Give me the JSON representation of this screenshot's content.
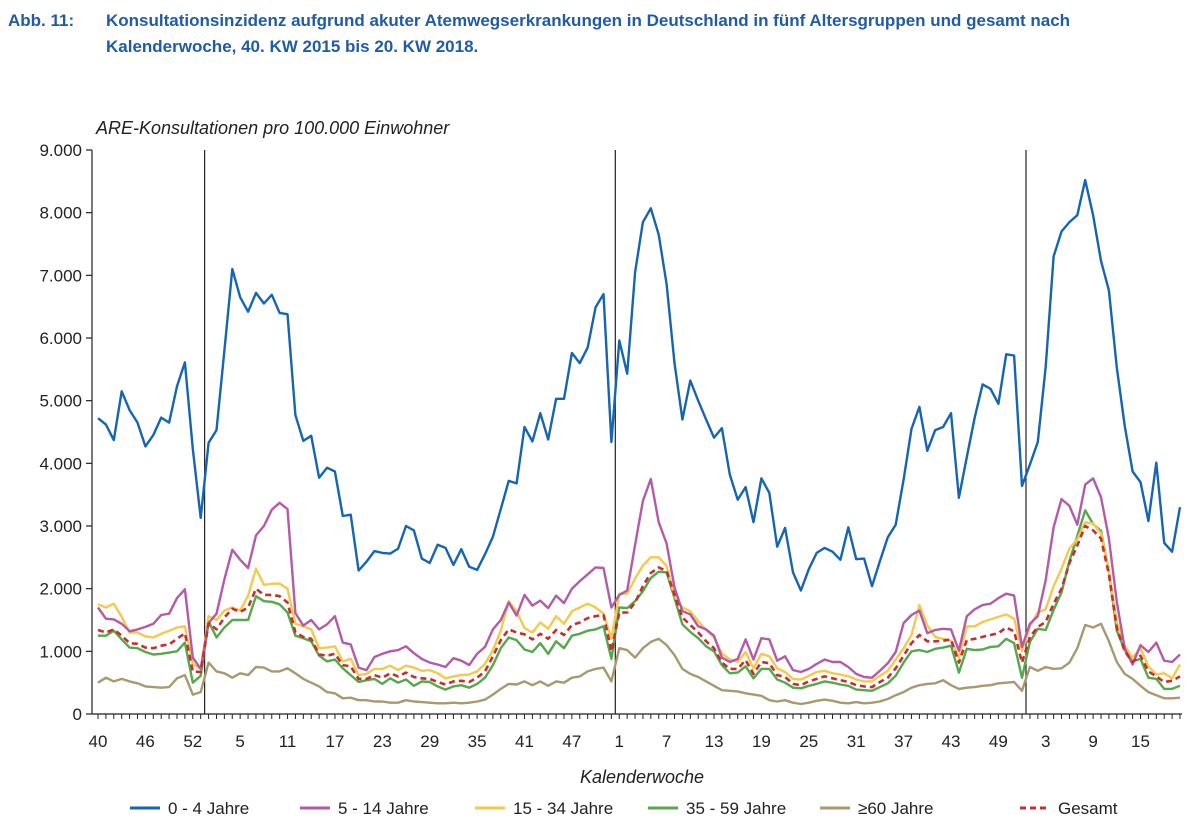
{
  "caption": {
    "label": "Abb. 11:",
    "text": "Konsultationsinzidenz aufgrund akuter Atemwegserkrankungen in Deutschland in fünf Altersgruppen und gesamt nach Kalenderwoche, 40. KW 2015 bis 20. KW 2018."
  },
  "chart_data": {
    "type": "line",
    "title": "",
    "ylabel": "ARE-Konsultationen pro 100.000 Einwohner",
    "xlabel": "Kalenderwoche",
    "ylim": [
      0,
      9000
    ],
    "yticks": [
      "0",
      "1.000",
      "2.000",
      "3.000",
      "4.000",
      "5.000",
      "6.000",
      "7.000",
      "8.000",
      "9.000"
    ],
    "x": [
      "40",
      "41",
      "42",
      "43",
      "44",
      "45",
      "46",
      "47",
      "48",
      "49",
      "50",
      "51",
      "52",
      "53",
      "1",
      "2",
      "3",
      "4",
      "5",
      "6",
      "7",
      "8",
      "9",
      "10",
      "11",
      "12",
      "13",
      "14",
      "15",
      "16",
      "17",
      "18",
      "19",
      "20",
      "21",
      "22",
      "23",
      "24",
      "25",
      "26",
      "27",
      "28",
      "29",
      "30",
      "31",
      "32",
      "33",
      "34",
      "35",
      "36",
      "37",
      "38",
      "39",
      "40",
      "41",
      "42",
      "43",
      "44",
      "45",
      "46",
      "47",
      "48",
      "49",
      "50",
      "51",
      "52",
      "1",
      "2",
      "3",
      "4",
      "5",
      "6",
      "7",
      "8",
      "9",
      "10",
      "11",
      "12",
      "13",
      "14",
      "15",
      "16",
      "17",
      "18",
      "19",
      "20",
      "21",
      "22",
      "23",
      "24",
      "25",
      "26",
      "27",
      "28",
      "29",
      "30",
      "31",
      "32",
      "33",
      "34",
      "35",
      "36",
      "37",
      "38",
      "39",
      "40",
      "41",
      "42",
      "43",
      "44",
      "45",
      "46",
      "47",
      "48",
      "49",
      "50",
      "51",
      "52",
      "1",
      "2",
      "3",
      "4",
      "5",
      "6",
      "7",
      "8",
      "9",
      "10",
      "11",
      "12",
      "13",
      "14",
      "15",
      "16",
      "17",
      "18",
      "19",
      "20"
    ],
    "xtick_labels": [
      "40",
      "46",
      "52",
      "5",
      "11",
      "17",
      "23",
      "29",
      "35",
      "41",
      "47",
      "1",
      "7",
      "13",
      "19",
      "25",
      "31",
      "37",
      "43",
      "49",
      "3",
      "9",
      "15"
    ],
    "season_breaks_after_week": [
      "53",
      "52",
      "52"
    ],
    "grid": false,
    "legend_position": "bottom",
    "series": [
      {
        "name": "0 - 4 Jahre",
        "color": "#1565b4",
        "dashed": false,
        "values": [
          4720,
          4620,
          4370,
          5150,
          4850,
          4650,
          4270,
          4450,
          4730,
          4650,
          5230,
          5610,
          4230,
          3130,
          4330,
          4530,
          5800,
          7100,
          6650,
          6420,
          6720,
          6550,
          6690,
          6400,
          6380,
          4770,
          4360,
          4440,
          3770,
          3930,
          3870,
          3160,
          3180,
          2290,
          2430,
          2600,
          2570,
          2560,
          2640,
          3000,
          2930,
          2480,
          2410,
          2700,
          2650,
          2380,
          2630,
          2350,
          2300,
          2550,
          2830,
          3270,
          3720,
          3680,
          4580,
          4350,
          4800,
          4380,
          5030,
          5030,
          5760,
          5600,
          5850,
          6490,
          6700,
          4340,
          5960,
          5430,
          7050,
          7850,
          8070,
          7650,
          6860,
          5600,
          4700,
          5320,
          5000,
          4700,
          4410,
          4560,
          3820,
          3420,
          3620,
          3060,
          3760,
          3530,
          2670,
          2970,
          2260,
          1970,
          2310,
          2570,
          2650,
          2590,
          2460,
          2980,
          2470,
          2480,
          2040,
          2440,
          2820,
          3020,
          3740,
          4550,
          4900,
          4200,
          4530,
          4580,
          4800,
          3450,
          4100,
          4730,
          5260,
          5190,
          4950,
          5740,
          5720,
          3640,
          3980,
          4340,
          5540,
          7300,
          7700,
          7850,
          7960,
          8520,
          7960,
          7230,
          6760,
          5530,
          4600,
          3870,
          3700,
          3080,
          4010,
          2730,
          2590,
          3300
        ]
      },
      {
        "name": "5 - 14 Jahre",
        "color": "#b45aa9",
        "dashed": false,
        "values": [
          1700,
          1520,
          1510,
          1440,
          1320,
          1350,
          1390,
          1440,
          1580,
          1600,
          1850,
          1990,
          900,
          720,
          1450,
          1600,
          2150,
          2620,
          2460,
          2330,
          2850,
          3000,
          3260,
          3370,
          3270,
          1610,
          1410,
          1500,
          1350,
          1430,
          1560,
          1140,
          1110,
          740,
          700,
          910,
          960,
          1000,
          1020,
          1080,
          970,
          880,
          820,
          790,
          750,
          890,
          850,
          780,
          960,
          1070,
          1350,
          1500,
          1780,
          1570,
          1900,
          1730,
          1810,
          1690,
          1890,
          1770,
          2000,
          2120,
          2230,
          2340,
          2330,
          1700,
          1900,
          1970,
          2700,
          3400,
          3750,
          3060,
          2720,
          2020,
          1640,
          1590,
          1400,
          1350,
          1250,
          900,
          830,
          880,
          1190,
          870,
          1210,
          1190,
          850,
          920,
          700,
          670,
          720,
          800,
          870,
          830,
          830,
          750,
          640,
          590,
          580,
          690,
          810,
          990,
          1450,
          1580,
          1650,
          1290,
          1340,
          1360,
          1350,
          1010,
          1560,
          1670,
          1740,
          1760,
          1850,
          1920,
          1890,
          1070,
          1440,
          1560,
          2140,
          2980,
          3430,
          3320,
          3020,
          3660,
          3760,
          3460,
          2800,
          1790,
          1050,
          790,
          1100,
          990,
          1140,
          850,
          830,
          950
        ]
      },
      {
        "name": "15 - 34 Jahre",
        "color": "#f5c94a",
        "dashed": false,
        "values": [
          1750,
          1700,
          1760,
          1550,
          1300,
          1300,
          1240,
          1220,
          1280,
          1330,
          1380,
          1400,
          800,
          720,
          1560,
          1500,
          1650,
          1700,
          1650,
          1890,
          2320,
          2060,
          2080,
          2080,
          2000,
          1440,
          1400,
          1350,
          1050,
          1060,
          1080,
          840,
          880,
          620,
          640,
          720,
          720,
          770,
          700,
          770,
          740,
          690,
          700,
          650,
          570,
          600,
          620,
          630,
          680,
          800,
          1020,
          1330,
          1800,
          1640,
          1370,
          1300,
          1460,
          1360,
          1560,
          1440,
          1640,
          1700,
          1760,
          1700,
          1600,
          1200,
          1920,
          1920,
          2160,
          2370,
          2500,
          2500,
          2360,
          1880,
          1700,
          1640,
          1480,
          1340,
          1220,
          970,
          870,
          830,
          990,
          730,
          960,
          920,
          730,
          670,
          560,
          550,
          610,
          670,
          690,
          650,
          630,
          600,
          550,
          520,
          520,
          610,
          690,
          870,
          1050,
          1260,
          1740,
          1410,
          1230,
          1200,
          1170,
          900,
          1400,
          1400,
          1470,
          1510,
          1550,
          1590,
          1520,
          1000,
          1400,
          1620,
          1670,
          2040,
          2320,
          2640,
          2790,
          3060,
          3040,
          2880,
          2300,
          1460,
          1090,
          900,
          1050,
          760,
          630,
          650,
          570,
          790
        ]
      },
      {
        "name": "35 - 59 Jahre",
        "color": "#56a84c",
        "dashed": false,
        "values": [
          1250,
          1250,
          1330,
          1190,
          1060,
          1050,
          990,
          950,
          960,
          980,
          1000,
          1140,
          500,
          610,
          1480,
          1220,
          1380,
          1500,
          1500,
          1500,
          1880,
          1800,
          1790,
          1750,
          1620,
          1250,
          1210,
          1160,
          930,
          840,
          870,
          730,
          620,
          510,
          540,
          560,
          480,
          570,
          500,
          550,
          450,
          520,
          510,
          440,
          390,
          440,
          460,
          420,
          480,
          580,
          780,
          1050,
          1220,
          1180,
          1030,
          990,
          1130,
          960,
          1160,
          1050,
          1250,
          1280,
          1330,
          1350,
          1400,
          880,
          1700,
          1690,
          1800,
          1960,
          2170,
          2270,
          2260,
          1850,
          1430,
          1310,
          1210,
          1080,
          1000,
          780,
          650,
          660,
          760,
          570,
          720,
          720,
          550,
          500,
          420,
          410,
          450,
          480,
          520,
          500,
          470,
          450,
          390,
          380,
          370,
          430,
          490,
          610,
          820,
          1000,
          1020,
          990,
          1040,
          1060,
          1090,
          660,
          1040,
          1020,
          1030,
          1070,
          1080,
          1200,
          1130,
          580,
          1150,
          1360,
          1340,
          1660,
          1940,
          2440,
          2840,
          3250,
          3030,
          2920,
          2280,
          1330,
          1020,
          840,
          880,
          580,
          560,
          400,
          400,
          450
        ]
      },
      {
        "name": "≥60 Jahre",
        "color": "#a89a6e",
        "dashed": false,
        "values": [
          500,
          580,
          520,
          560,
          520,
          490,
          440,
          430,
          420,
          430,
          570,
          620,
          310,
          350,
          820,
          680,
          650,
          580,
          650,
          620,
          750,
          740,
          680,
          680,
          730,
          650,
          560,
          500,
          440,
          350,
          330,
          250,
          260,
          220,
          220,
          200,
          200,
          180,
          180,
          220,
          200,
          190,
          180,
          170,
          170,
          180,
          170,
          180,
          200,
          230,
          310,
          400,
          480,
          470,
          520,
          460,
          520,
          450,
          520,
          500,
          580,
          600,
          680,
          720,
          740,
          520,
          1050,
          1020,
          900,
          1050,
          1150,
          1200,
          1100,
          940,
          720,
          640,
          590,
          520,
          450,
          380,
          370,
          360,
          330,
          310,
          290,
          220,
          200,
          220,
          180,
          160,
          180,
          210,
          230,
          210,
          180,
          170,
          190,
          170,
          180,
          200,
          240,
          300,
          350,
          420,
          460,
          480,
          490,
          540,
          460,
          400,
          420,
          430,
          450,
          460,
          490,
          500,
          510,
          370,
          750,
          690,
          750,
          720,
          730,
          820,
          1050,
          1420,
          1380,
          1440,
          1160,
          830,
          640,
          560,
          450,
          350,
          300,
          250,
          250,
          260
        ]
      },
      {
        "name": "Gesamt",
        "color": "#c62f2f",
        "dashed": true,
        "values": [
          1340,
          1300,
          1350,
          1250,
          1130,
          1120,
          1060,
          1050,
          1090,
          1110,
          1200,
          1290,
          680,
          670,
          1450,
          1350,
          1540,
          1680,
          1630,
          1700,
          2000,
          1900,
          1900,
          1880,
          1780,
          1300,
          1230,
          1200,
          950,
          930,
          960,
          780,
          760,
          560,
          560,
          620,
          580,
          650,
          600,
          660,
          590,
          570,
          560,
          510,
          470,
          520,
          530,
          510,
          580,
          680,
          920,
          1180,
          1350,
          1300,
          1270,
          1190,
          1280,
          1200,
          1340,
          1260,
          1420,
          1460,
          1530,
          1560,
          1580,
          1000,
          1620,
          1620,
          1780,
          2040,
          2250,
          2340,
          2280,
          1900,
          1540,
          1420,
          1300,
          1160,
          1050,
          820,
          720,
          720,
          860,
          640,
          830,
          810,
          620,
          590,
          480,
          460,
          520,
          560,
          600,
          570,
          540,
          510,
          460,
          440,
          430,
          510,
          580,
          730,
          930,
          1130,
          1260,
          1160,
          1160,
          1170,
          1190,
          820,
          1180,
          1200,
          1230,
          1260,
          1290,
          1380,
          1320,
          820,
          1230,
          1390,
          1470,
          1760,
          2000,
          2410,
          2690,
          3000,
          2930,
          2800,
          2230,
          1370,
          1000,
          830,
          930,
          680,
          600,
          510,
          530,
          600
        ]
      }
    ]
  }
}
